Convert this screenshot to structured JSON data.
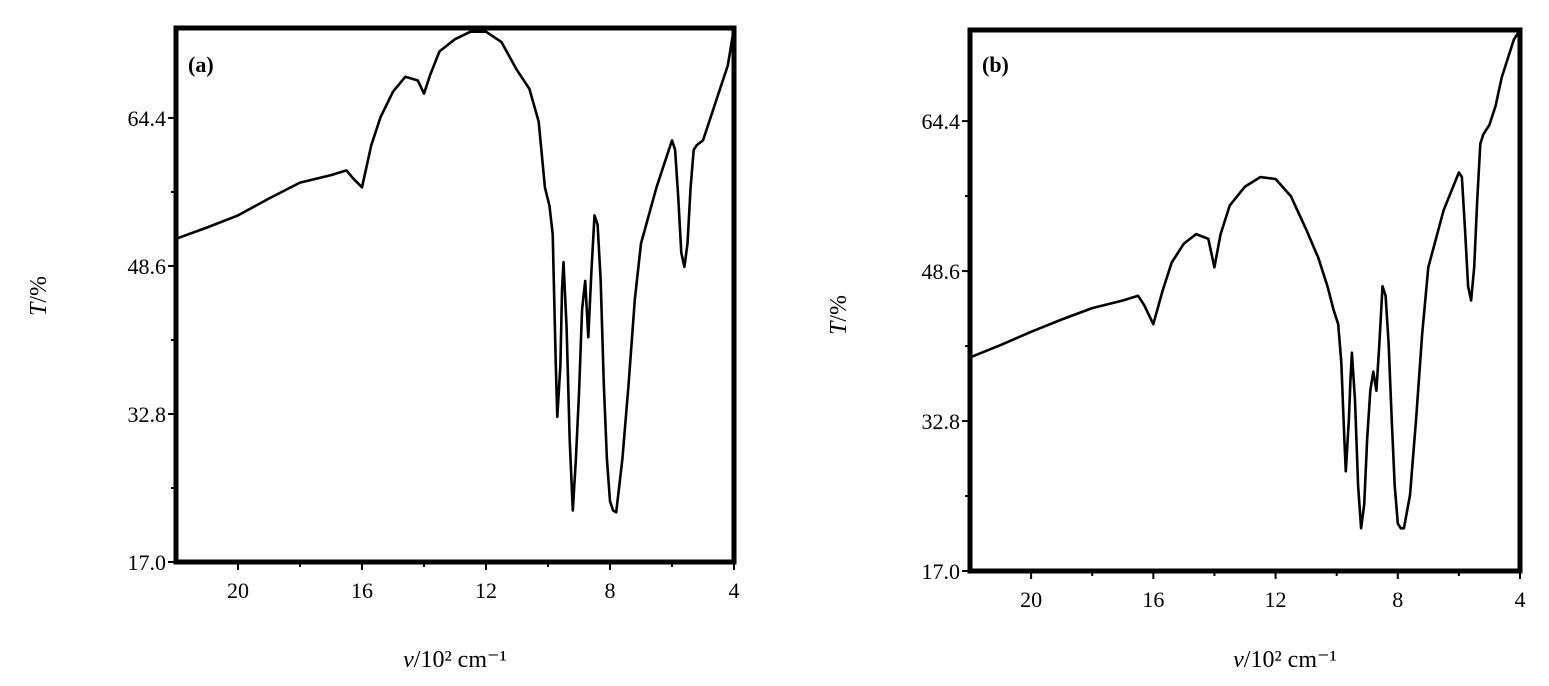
{
  "chart_data": [
    {
      "type": "line",
      "panel_label": "(a)",
      "xlabel_symbol": "ν",
      "xlabel_unit": "/10² cm⁻¹",
      "ylabel_symbol": "T",
      "ylabel_unit": "/%",
      "xlim": [
        22,
        4
      ],
      "ylim": [
        17.0,
        74.0
      ],
      "xticks": [
        20,
        16,
        12,
        8,
        4
      ],
      "yticks": [
        17.0,
        32.8,
        48.6,
        64.4
      ],
      "series": [
        {
          "x": [
            22.0,
            21.0,
            20.0,
            19.0,
            18.0,
            17.0,
            16.5,
            16.3,
            16.0,
            15.7,
            15.4,
            15.0,
            14.6,
            14.2,
            14.0,
            13.8,
            13.5,
            13.0,
            12.5,
            12.0,
            11.5,
            11.0,
            10.6,
            10.3,
            10.1,
            9.95,
            9.85,
            9.75,
            9.7,
            9.6,
            9.55,
            9.5,
            9.4,
            9.3,
            9.2,
            9.1,
            9.0,
            8.9,
            8.8,
            8.7,
            8.6,
            8.5,
            8.4,
            8.3,
            8.2,
            8.1,
            8.0,
            7.9,
            7.8,
            7.6,
            7.4,
            7.2,
            7.0,
            6.5,
            6.0,
            5.9,
            5.8,
            5.7,
            5.6,
            5.5,
            5.4,
            5.3,
            5.2,
            5.0,
            4.8,
            4.6,
            4.4,
            4.2,
            4.0
          ],
          "y": [
            51.5,
            52.7,
            54.0,
            55.8,
            57.5,
            58.3,
            58.8,
            58.0,
            57.0,
            61.5,
            64.5,
            67.2,
            68.8,
            68.4,
            67.0,
            69.0,
            71.5,
            72.8,
            73.6,
            73.6,
            72.5,
            69.5,
            67.5,
            64.0,
            57.0,
            55.0,
            52.0,
            38.0,
            32.5,
            38.0,
            46.0,
            49.0,
            42.0,
            30.0,
            22.5,
            28.0,
            35.0,
            44.0,
            47.0,
            41.0,
            48.0,
            54.0,
            53.0,
            47.0,
            36.0,
            28.0,
            23.5,
            22.5,
            22.3,
            28.0,
            36.0,
            45.0,
            51.0,
            57.0,
            62.0,
            61.0,
            56.0,
            50.0,
            48.5,
            51.0,
            57.0,
            61.0,
            61.5,
            62.0,
            64.0,
            66.0,
            68.0,
            70.0,
            74.0
          ]
        }
      ]
    },
    {
      "type": "line",
      "panel_label": "(b)",
      "xlabel_symbol": "ν",
      "xlabel_unit": "/10² cm⁻¹",
      "ylabel_symbol": "T",
      "ylabel_unit": "/%",
      "xlim": [
        22,
        4
      ],
      "ylim": [
        17.0,
        74.0
      ],
      "xticks": [
        20,
        16,
        12,
        8,
        4
      ],
      "yticks": [
        17.0,
        32.8,
        48.6,
        64.4
      ],
      "series": [
        {
          "x": [
            22.0,
            21.0,
            20.0,
            19.0,
            18.0,
            17.0,
            16.5,
            16.3,
            16.0,
            15.7,
            15.4,
            15.0,
            14.6,
            14.2,
            14.0,
            13.8,
            13.5,
            13.0,
            12.5,
            12.0,
            11.5,
            11.0,
            10.6,
            10.3,
            10.1,
            9.95,
            9.85,
            9.75,
            9.7,
            9.6,
            9.55,
            9.5,
            9.4,
            9.3,
            9.2,
            9.1,
            9.0,
            8.9,
            8.8,
            8.7,
            8.6,
            8.5,
            8.4,
            8.3,
            8.2,
            8.1,
            8.0,
            7.9,
            7.8,
            7.6,
            7.4,
            7.2,
            7.0,
            6.5,
            6.0,
            5.9,
            5.8,
            5.7,
            5.6,
            5.5,
            5.4,
            5.3,
            5.2,
            5.0,
            4.8,
            4.6,
            4.4,
            4.2,
            4.0
          ],
          "y": [
            39.5,
            40.8,
            42.2,
            43.5,
            44.7,
            45.5,
            46.0,
            45.0,
            43.0,
            46.5,
            49.5,
            51.5,
            52.5,
            52.0,
            49.0,
            52.5,
            55.5,
            57.5,
            58.5,
            58.3,
            56.5,
            53.0,
            50.0,
            47.0,
            44.5,
            43.0,
            39.0,
            31.0,
            27.5,
            33.0,
            37.0,
            40.0,
            35.0,
            26.0,
            21.5,
            24.0,
            31.0,
            36.0,
            38.0,
            36.0,
            41.0,
            47.0,
            46.0,
            41.0,
            33.0,
            26.0,
            22.0,
            21.5,
            21.5,
            25.0,
            33.0,
            42.0,
            49.0,
            55.0,
            59.0,
            58.5,
            53.0,
            47.0,
            45.5,
            49.0,
            56.0,
            62.0,
            63.0,
            64.0,
            66.0,
            69.0,
            71.0,
            73.0,
            74.0
          ]
        }
      ]
    }
  ]
}
